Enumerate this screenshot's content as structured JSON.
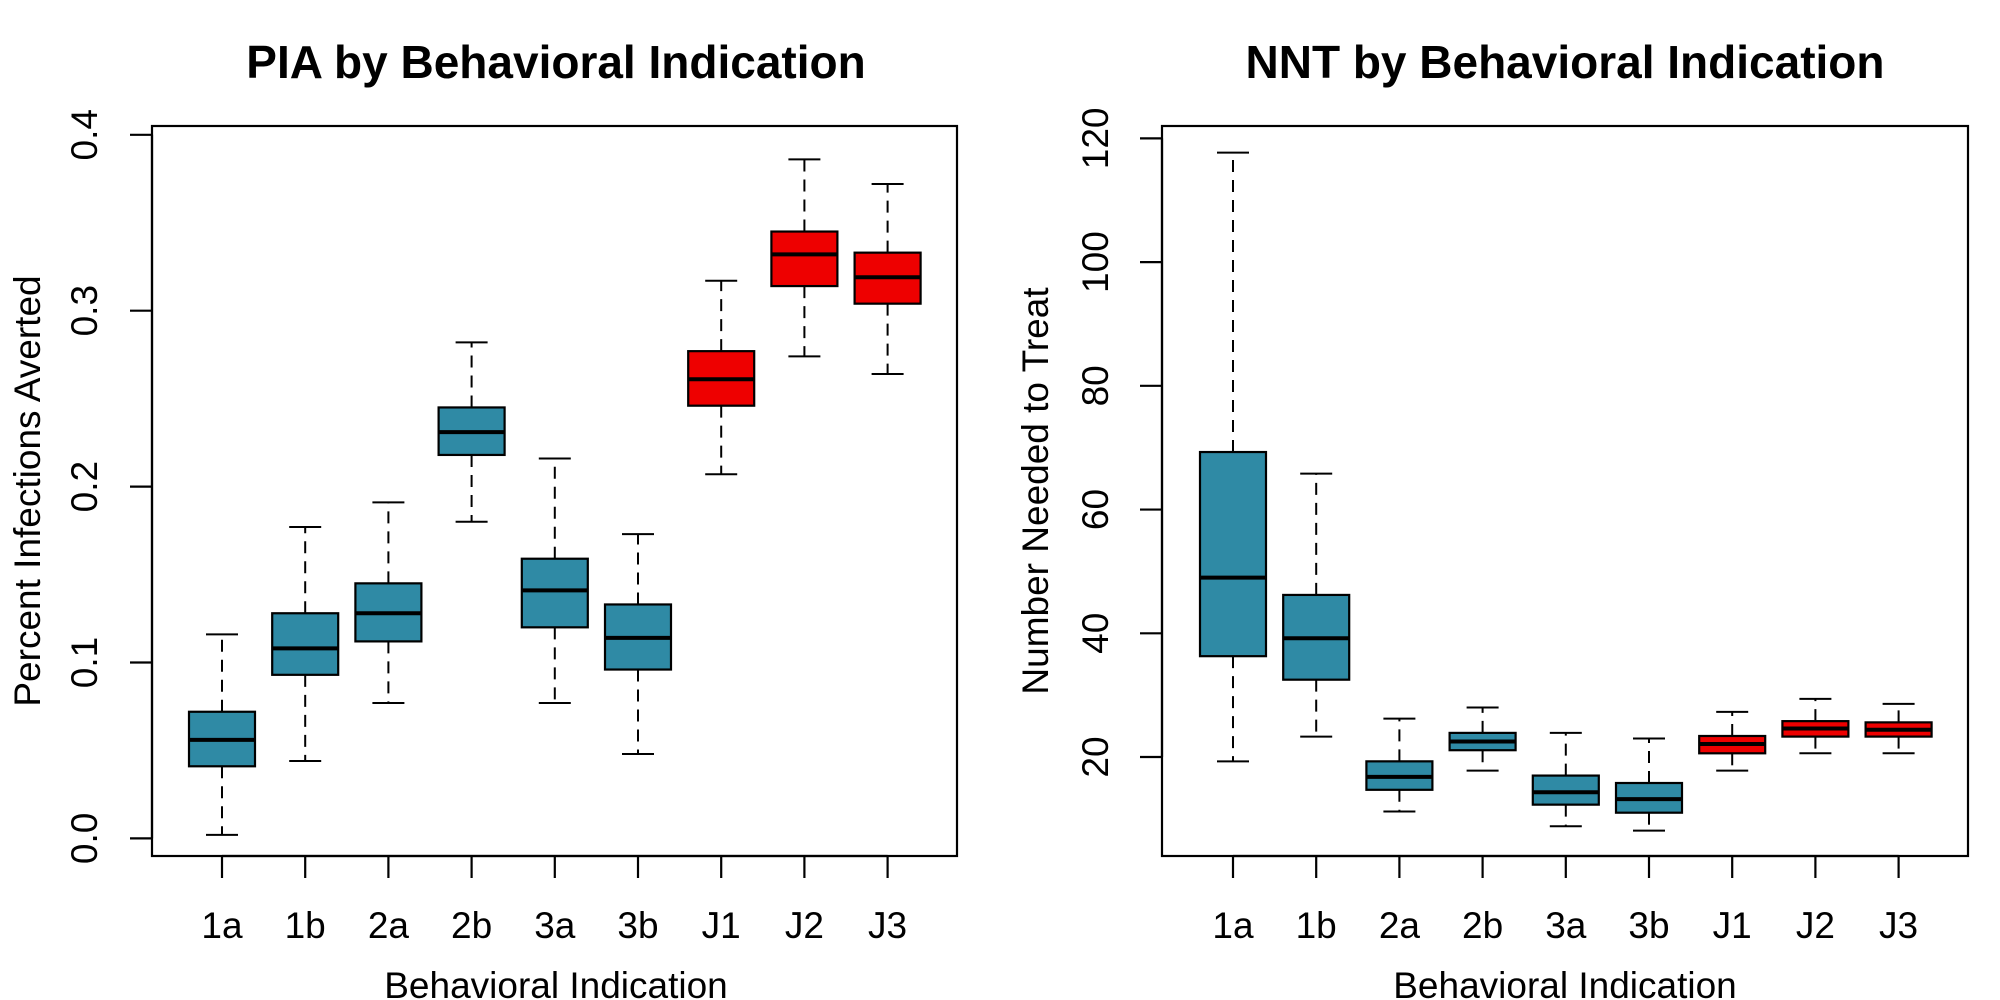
{
  "colors": {
    "behavioral": "#2f8aa5",
    "joint": "#ee0000"
  },
  "chart_data": [
    {
      "type": "boxplot",
      "title": "PIA by Behavioral Indication",
      "xlabel": "Behavioral Indication",
      "ylabel": "Percent Infections Averted",
      "ylim": [
        -0.01,
        0.405
      ],
      "yticks": [
        0.0,
        0.1,
        0.2,
        0.3,
        0.4
      ],
      "ytick_labels": [
        "0.0",
        "0.1",
        "0.2",
        "0.3",
        "0.4"
      ],
      "categories": [
        "1a",
        "1b",
        "2a",
        "2b",
        "3a",
        "3b",
        "J1",
        "J2",
        "J3"
      ],
      "groups": [
        "behavioral",
        "behavioral",
        "behavioral",
        "behavioral",
        "behavioral",
        "behavioral",
        "joint",
        "joint",
        "joint"
      ],
      "boxes": [
        {
          "min": 0.002,
          "q1": 0.041,
          "median": 0.056,
          "q3": 0.072,
          "max": 0.116
        },
        {
          "min": 0.044,
          "q1": 0.093,
          "median": 0.108,
          "q3": 0.128,
          "max": 0.177
        },
        {
          "min": 0.077,
          "q1": 0.112,
          "median": 0.128,
          "q3": 0.145,
          "max": 0.191
        },
        {
          "min": 0.18,
          "q1": 0.218,
          "median": 0.231,
          "q3": 0.245,
          "max": 0.282
        },
        {
          "min": 0.077,
          "q1": 0.12,
          "median": 0.141,
          "q3": 0.159,
          "max": 0.216
        },
        {
          "min": 0.048,
          "q1": 0.096,
          "median": 0.114,
          "q3": 0.133,
          "max": 0.173
        },
        {
          "min": 0.207,
          "q1": 0.246,
          "median": 0.261,
          "q3": 0.277,
          "max": 0.317
        },
        {
          "min": 0.274,
          "q1": 0.314,
          "median": 0.332,
          "q3": 0.345,
          "max": 0.386
        },
        {
          "min": 0.264,
          "q1": 0.304,
          "median": 0.319,
          "q3": 0.333,
          "max": 0.372
        }
      ]
    },
    {
      "type": "boxplot",
      "title": "NNT by Behavioral Indication",
      "xlabel": "Behavioral Indication",
      "ylabel": "Number Needed to Treat",
      "ylim": [
        4,
        122
      ],
      "yticks": [
        20,
        40,
        60,
        80,
        100,
        120
      ],
      "ytick_labels": [
        "20",
        "40",
        "60",
        "80",
        "100",
        "120"
      ],
      "categories": [
        "1a",
        "1b",
        "2a",
        "2b",
        "3a",
        "3b",
        "J1",
        "J2",
        "J3"
      ],
      "groups": [
        "behavioral",
        "behavioral",
        "behavioral",
        "behavioral",
        "behavioral",
        "behavioral",
        "joint",
        "joint",
        "joint"
      ],
      "boxes": [
        {
          "min": 19.3,
          "q1": 36.3,
          "median": 49.0,
          "q3": 69.3,
          "max": 117.7
        },
        {
          "min": 23.3,
          "q1": 32.5,
          "median": 39.2,
          "q3": 46.2,
          "max": 65.8
        },
        {
          "min": 11.2,
          "q1": 14.7,
          "median": 16.8,
          "q3": 19.3,
          "max": 26.2
        },
        {
          "min": 17.8,
          "q1": 21.1,
          "median": 22.5,
          "q3": 23.9,
          "max": 28.0
        },
        {
          "min": 8.8,
          "q1": 12.3,
          "median": 14.3,
          "q3": 17.0,
          "max": 23.9
        },
        {
          "min": 8.1,
          "q1": 11.0,
          "median": 13.2,
          "q3": 15.8,
          "max": 23.0
        },
        {
          "min": 17.8,
          "q1": 20.6,
          "median": 22.1,
          "q3": 23.4,
          "max": 27.3
        },
        {
          "min": 20.6,
          "q1": 23.3,
          "median": 24.6,
          "q3": 25.8,
          "max": 29.4
        },
        {
          "min": 20.6,
          "q1": 23.3,
          "median": 24.4,
          "q3": 25.6,
          "max": 28.6
        }
      ]
    }
  ]
}
